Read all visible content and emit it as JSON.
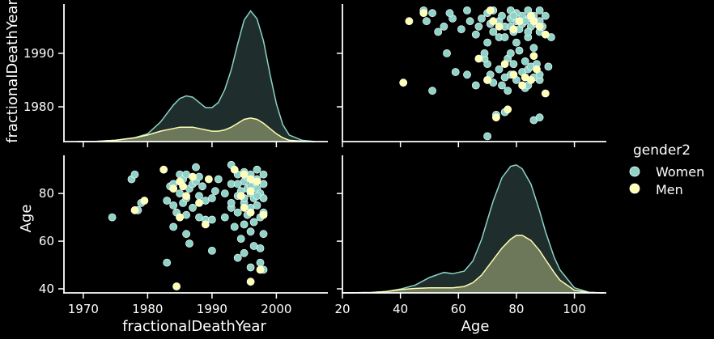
{
  "chart_data": {
    "type": "scatter",
    "kind": "pairplot",
    "variables": [
      "fractionalDeathYear",
      "Age"
    ],
    "hue": {
      "title": "gender2",
      "levels": [
        {
          "name": "Women",
          "color": "#8dd3c7"
        },
        {
          "name": "Men",
          "color": "#ffffb3"
        }
      ],
      "legend_position": "right"
    },
    "axes": {
      "fractionalDeathYear": {
        "label": "fractionalDeathYear",
        "ticks": [
          1970,
          1980,
          1990,
          2000
        ],
        "diag_ticks": [
          1980,
          1990
        ],
        "range": [
          1967,
          2008
        ]
      },
      "Age": {
        "label": "Age",
        "ticks": [
          20,
          40,
          60,
          80,
          100
        ],
        "y_ticks": [
          40,
          60,
          80
        ],
        "range": [
          20,
          111
        ]
      }
    },
    "diagonal_kde": {
      "fractionalDeathYear": {
        "x": [
          1969,
          1972,
          1975,
          1978,
          1980,
          1982,
          1984,
          1985,
          1986,
          1987,
          1988,
          1989,
          1990,
          1991,
          1992,
          1993,
          1994,
          1995,
          1996,
          1997,
          1998,
          1999,
          2000,
          2001,
          2002,
          2004,
          2006
        ],
        "Women": [
          0,
          0.002,
          0.01,
          0.03,
          0.06,
          0.15,
          0.28,
          0.33,
          0.35,
          0.34,
          0.3,
          0.26,
          0.26,
          0.3,
          0.4,
          0.55,
          0.75,
          0.93,
          1.0,
          0.94,
          0.77,
          0.52,
          0.29,
          0.13,
          0.05,
          0.01,
          0
        ],
        "Men": [
          0,
          0.002,
          0.01,
          0.03,
          0.05,
          0.08,
          0.1,
          0.11,
          0.11,
          0.11,
          0.1,
          0.09,
          0.08,
          0.08,
          0.09,
          0.11,
          0.14,
          0.17,
          0.18,
          0.17,
          0.14,
          0.1,
          0.06,
          0.03,
          0.01,
          0.003,
          0
        ]
      },
      "Age": {
        "x": [
          20,
          30,
          35,
          40,
          45,
          50,
          55,
          58,
          62,
          65,
          68,
          70,
          72,
          75,
          78,
          80,
          82,
          85,
          88,
          90,
          93,
          95,
          100,
          105,
          110
        ],
        "Women": [
          0,
          0.003,
          0.01,
          0.03,
          0.06,
          0.12,
          0.16,
          0.15,
          0.17,
          0.25,
          0.42,
          0.57,
          0.72,
          0.9,
          0.99,
          1.0,
          0.97,
          0.85,
          0.64,
          0.48,
          0.28,
          0.18,
          0.04,
          0.005,
          0
        ],
        "Men": [
          0,
          0.003,
          0.01,
          0.025,
          0.035,
          0.04,
          0.04,
          0.04,
          0.05,
          0.08,
          0.14,
          0.2,
          0.26,
          0.35,
          0.42,
          0.45,
          0.45,
          0.41,
          0.33,
          0.26,
          0.16,
          0.1,
          0.02,
          0.003,
          0
        ]
      }
    },
    "points": {
      "Women": [
        [
          1974.5,
          70
        ],
        [
          1977.5,
          86
        ],
        [
          1978,
          88
        ],
        [
          1978.5,
          73
        ],
        [
          1979,
          76
        ],
        [
          1983,
          51
        ],
        [
          1983,
          77
        ],
        [
          1983.5,
          83
        ],
        [
          1984,
          84
        ],
        [
          1984,
          75
        ],
        [
          1984,
          66
        ],
        [
          1984.5,
          72
        ],
        [
          1985,
          88
        ],
        [
          1985,
          80
        ],
        [
          1985.5,
          76
        ],
        [
          1985.5,
          86
        ],
        [
          1986,
          78
        ],
        [
          1986,
          71
        ],
        [
          1986,
          63
        ],
        [
          1986.5,
          59
        ],
        [
          1986.5,
          82
        ],
        [
          1987,
          74
        ],
        [
          1987,
          84
        ],
        [
          1987.5,
          91
        ],
        [
          1987.5,
          85
        ],
        [
          1988,
          79
        ],
        [
          1988,
          70
        ],
        [
          1988.5,
          83
        ],
        [
          1989,
          77
        ],
        [
          1989,
          69
        ],
        [
          1990,
          56
        ],
        [
          1990,
          69
        ],
        [
          1990,
          78
        ],
        [
          1990.5,
          81
        ],
        [
          1991,
          86
        ],
        [
          1992,
          70
        ],
        [
          1993,
          92
        ],
        [
          1993,
          84
        ],
        [
          1993,
          74
        ],
        [
          1993.5,
          66
        ],
        [
          1994,
          88
        ],
        [
          1994,
          79
        ],
        [
          1994,
          72
        ],
        [
          1994,
          53
        ],
        [
          1994.5,
          81
        ],
        [
          1994.5,
          61
        ],
        [
          1995,
          85
        ],
        [
          1995,
          89
        ],
        [
          1995,
          76
        ],
        [
          1995,
          67
        ],
        [
          1995,
          55
        ],
        [
          1995.5,
          82
        ],
        [
          1995.5,
          71
        ],
        [
          1995.5,
          87
        ],
        [
          1996,
          80
        ],
        [
          1996,
          74
        ],
        [
          1996,
          64
        ],
        [
          1996,
          49
        ],
        [
          1996.5,
          84
        ],
        [
          1996.5,
          78
        ],
        [
          1996.5,
          68
        ],
        [
          1996.5,
          58
        ],
        [
          1997,
          90
        ],
        [
          1997,
          82
        ],
        [
          1997,
          75
        ],
        [
          1997,
          86
        ],
        [
          1997.5,
          80
        ],
        [
          1997.5,
          70
        ],
        [
          1997.5,
          57
        ],
        [
          1997.5,
          51
        ],
        [
          1998,
          84
        ],
        [
          1998,
          78
        ],
        [
          1998,
          88
        ],
        [
          1998,
          72
        ],
        [
          1998,
          63
        ],
        [
          1998,
          48
        ],
        [
          1994,
          84
        ],
        [
          1995,
          78
        ],
        [
          1996,
          88
        ],
        [
          1997,
          79
        ],
        [
          1996,
          83
        ],
        [
          1985,
          70
        ],
        [
          1988,
          87
        ],
        [
          1992,
          80
        ],
        [
          1993,
          76
        ],
        [
          1986,
          88
        ]
      ],
      "Men": [
        [
          1978,
          73
        ],
        [
          1979.5,
          77
        ],
        [
          1982.5,
          90
        ],
        [
          1984,
          82
        ],
        [
          1984.5,
          41
        ],
        [
          1985,
          70
        ],
        [
          1985,
          85
        ],
        [
          1986,
          79
        ],
        [
          1987,
          87
        ],
        [
          1989.5,
          86
        ],
        [
          1988,
          76
        ],
        [
          1989,
          67
        ],
        [
          1993.5,
          90
        ],
        [
          1995,
          88
        ],
        [
          1995,
          74
        ],
        [
          1996,
          81
        ],
        [
          1996,
          72
        ],
        [
          1996,
          43
        ],
        [
          1997,
          85
        ],
        [
          1997.5,
          48
        ],
        [
          1998,
          71
        ],
        [
          1994.5,
          79
        ],
        [
          1996,
          86
        ],
        [
          1985.5,
          83
        ]
      ]
    }
  }
}
